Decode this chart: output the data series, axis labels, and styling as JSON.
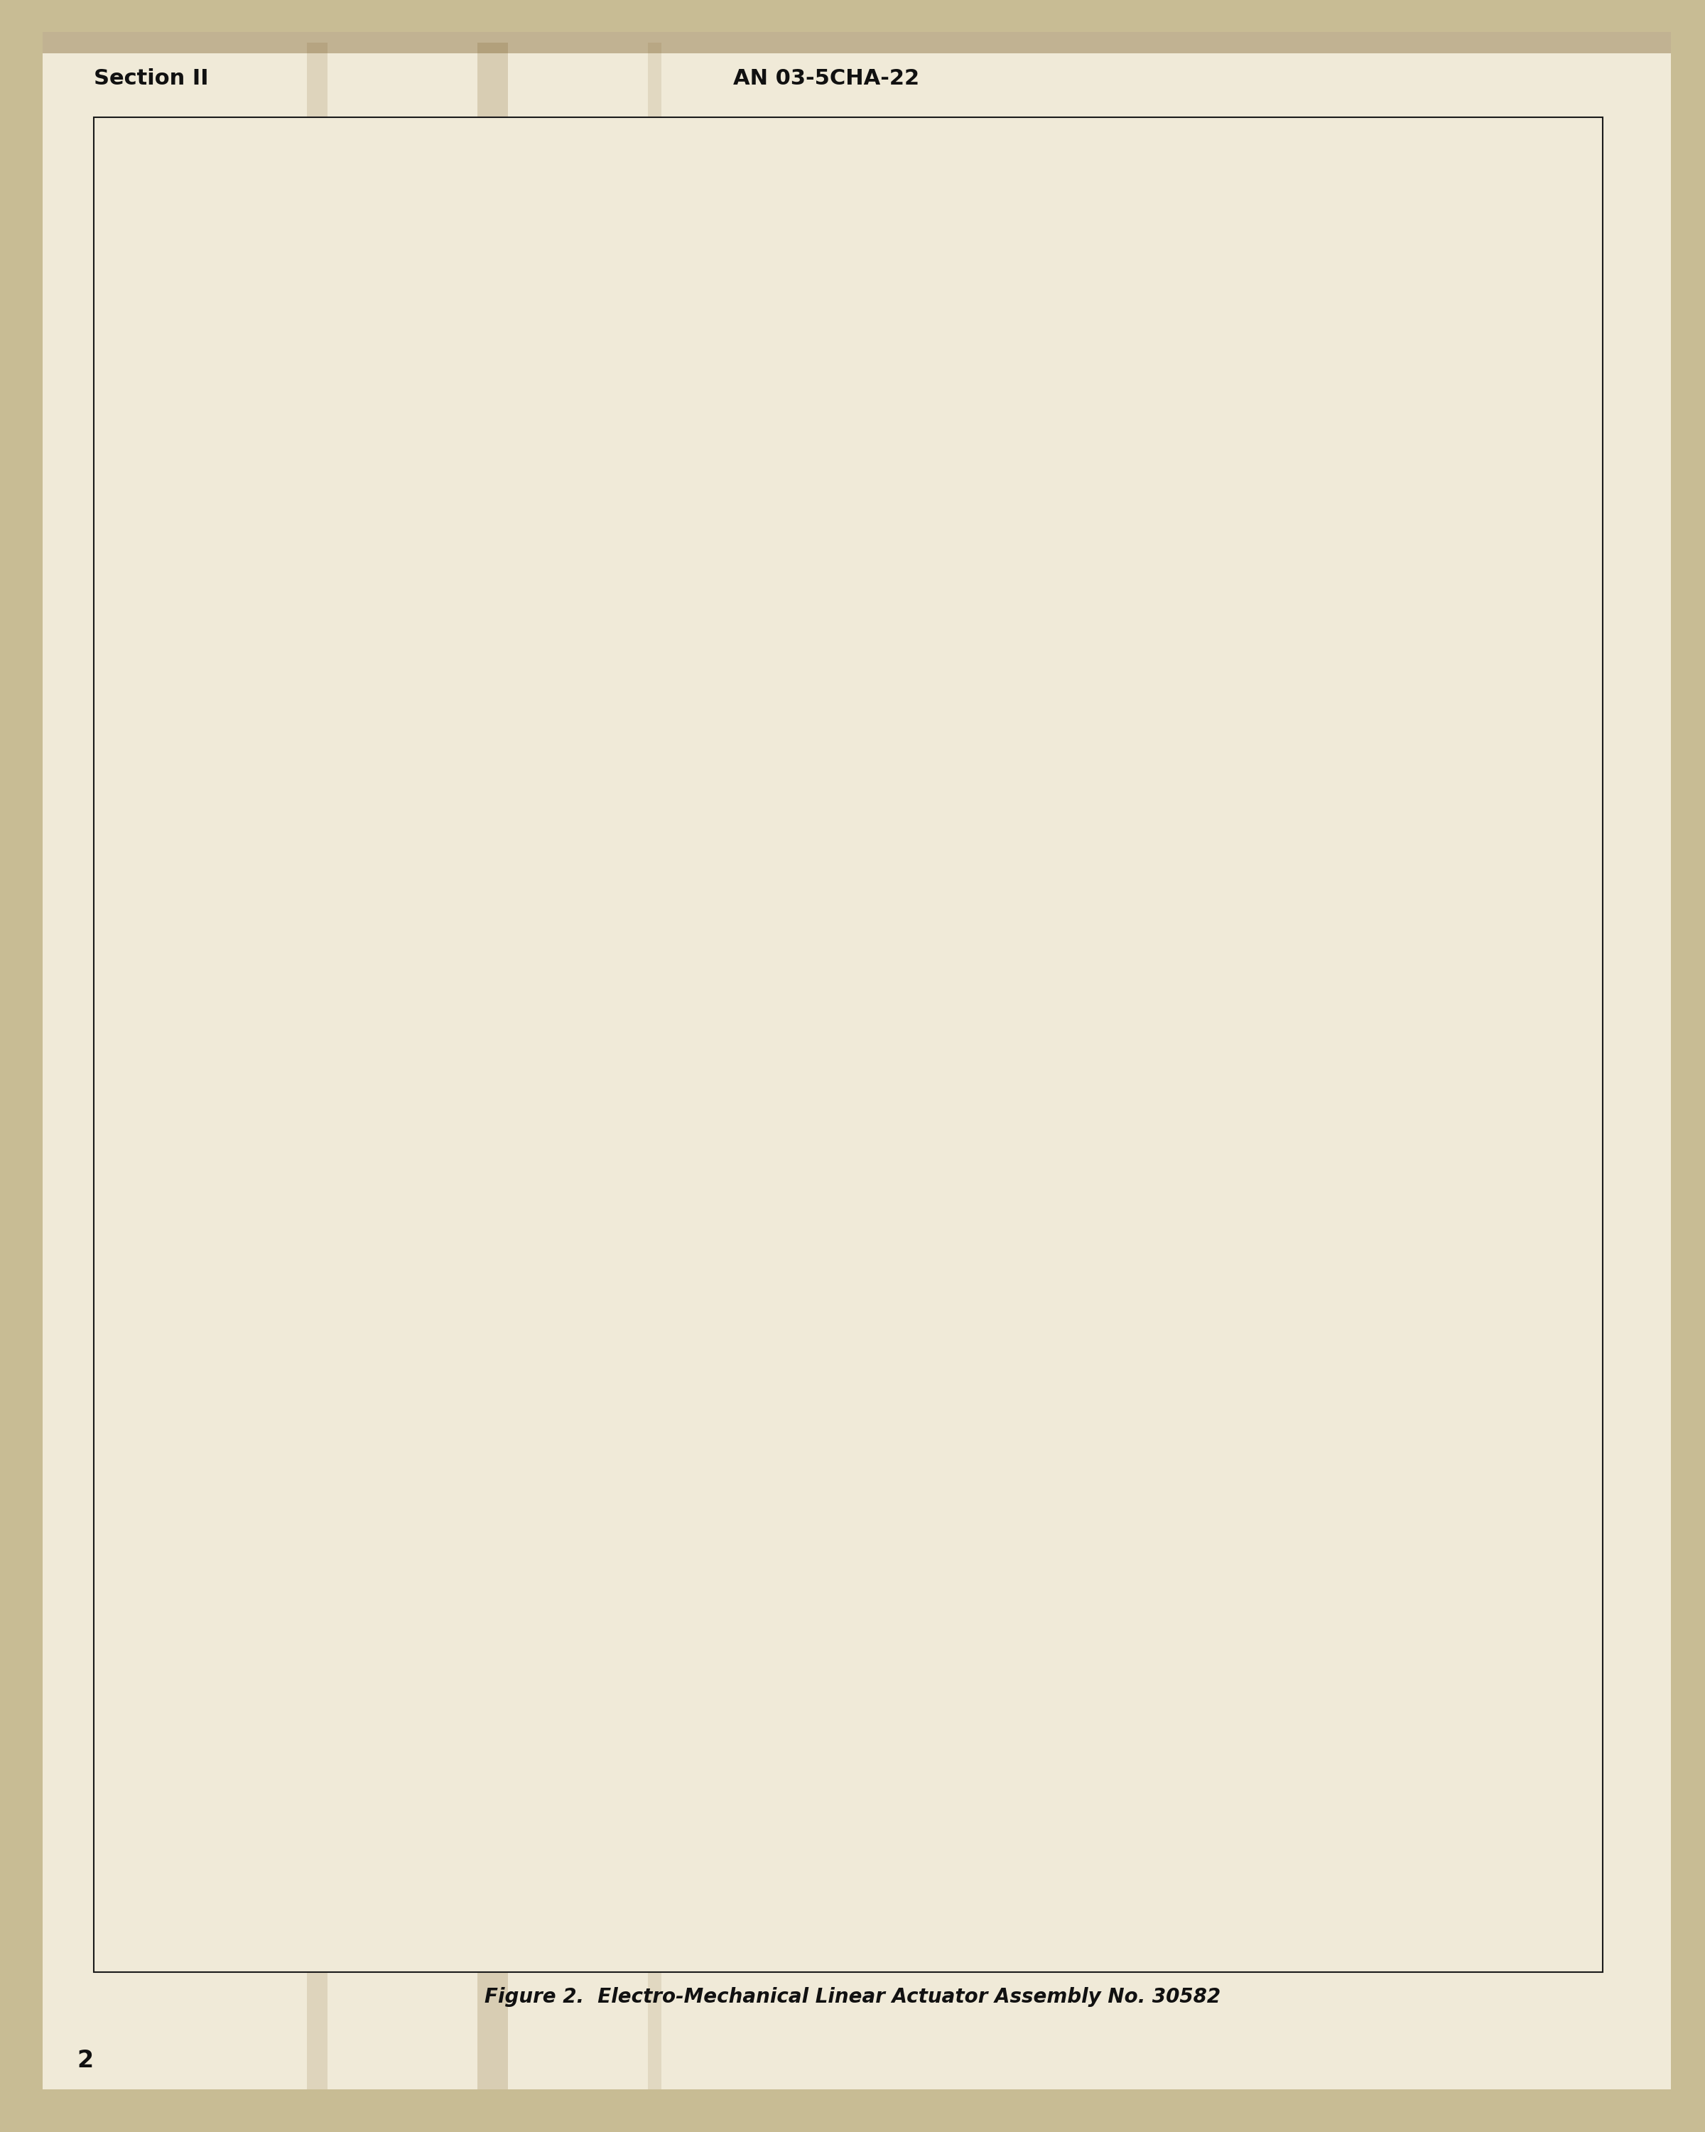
{
  "page_bg_color": "#f0ead8",
  "outer_bg_color": "#c8bc94",
  "header_left": "Section II",
  "header_center": "AN 03-5CHA-22",
  "figure_caption": "Figure 2.  Electro-Mechanical Linear Actuator Assembly No. 30582",
  "page_number": "2",
  "border_color": "#1a1a1a",
  "text_color": "#111111",
  "header_fontsize": 22,
  "caption_fontsize": 20,
  "page_num_fontsize": 24,
  "draw_color": "#1a1a1a",
  "light_gray": "#cccccc",
  "medium_gray": "#999999",
  "dark_gray": "#555555",
  "cream": "#e8e0c8"
}
